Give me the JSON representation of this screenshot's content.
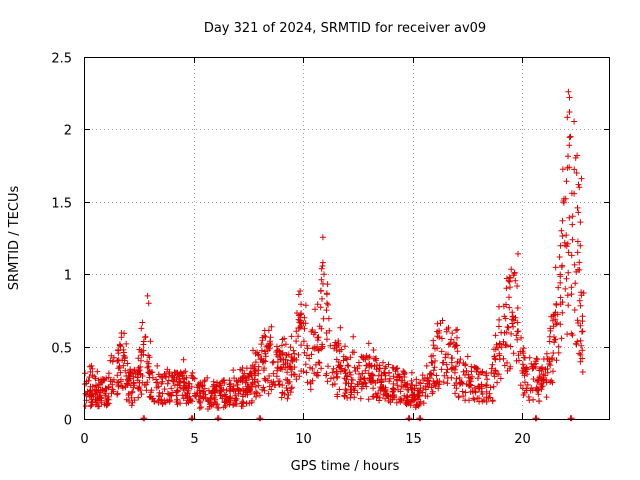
{
  "chart_data": {
    "type": "scatter",
    "title": "Day 321 of 2024, SRMTID for receiver av09",
    "xlabel": "GPS time / hours",
    "ylabel": "SRMTID / TECUs",
    "xlim": [
      0,
      24
    ],
    "ylim": [
      0,
      2.5
    ],
    "xticks": [
      0,
      5,
      10,
      15,
      20
    ],
    "xtick_labels": [
      "0",
      "5",
      "10",
      "15",
      "20"
    ],
    "yticks": [
      0,
      0.5,
      1,
      1.5,
      2,
      2.5
    ],
    "ytick_labels": [
      "0",
      "0.5",
      "1",
      "1.5",
      "2",
      "2.5"
    ],
    "grid": true,
    "marker": "+",
    "series": [
      {
        "name": "av09",
        "color": "#e00000",
        "profile": [
          [
            0,
            0.2
          ],
          [
            1,
            0.18
          ],
          [
            1.7,
            0.38
          ],
          [
            2.2,
            0.2
          ],
          [
            2.8,
            0.4
          ],
          [
            3.2,
            0.2
          ],
          [
            4.5,
            0.22
          ],
          [
            5.5,
            0.15
          ],
          [
            7.5,
            0.2
          ],
          [
            8.2,
            0.4
          ],
          [
            9.3,
            0.28
          ],
          [
            9.9,
            0.6
          ],
          [
            10.3,
            0.35
          ],
          [
            10.9,
            0.75
          ],
          [
            11.3,
            0.35
          ],
          [
            12.5,
            0.3
          ],
          [
            14.5,
            0.22
          ],
          [
            15.3,
            0.14
          ],
          [
            16.3,
            0.45
          ],
          [
            17.5,
            0.25
          ],
          [
            18.5,
            0.2
          ],
          [
            19.6,
            0.75
          ],
          [
            20.1,
            0.3
          ],
          [
            21.0,
            0.25
          ],
          [
            21.6,
            0.6
          ],
          [
            22.1,
            1.3
          ],
          [
            22.4,
            1.2
          ],
          [
            22.8,
            0.35
          ]
        ],
        "spikes": [
          [
            2.9,
            0.85
          ],
          [
            2.95,
            0.8
          ],
          [
            9.8,
            0.86
          ],
          [
            10.9,
            1.08
          ],
          [
            10.95,
            1.0
          ],
          [
            19.8,
            1.14
          ],
          [
            22.1,
            2.26
          ],
          [
            22.15,
            2.22
          ],
          [
            22.15,
            2.12
          ],
          [
            22.2,
            1.95
          ],
          [
            22.5,
            1.82
          ],
          [
            22.7,
            1.66
          ],
          [
            22.6,
            1.6
          ],
          [
            21.9,
            1.52
          ],
          [
            22.3,
            1.4
          ],
          [
            22.65,
            1.36
          ],
          [
            22.0,
            1.27
          ],
          [
            21.95,
            1.2
          ],
          [
            22.8,
            0.87
          ],
          [
            21.8,
            1.05
          ]
        ],
        "zeros": [
          2.7,
          4.9,
          6.1,
          8.0,
          14.8,
          15.3,
          20.6,
          22.2
        ],
        "count": 1600
      }
    ]
  }
}
